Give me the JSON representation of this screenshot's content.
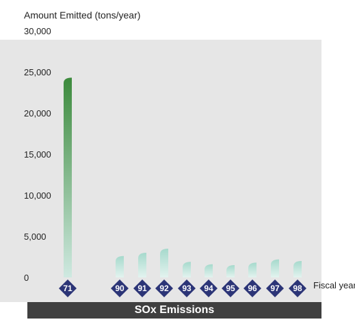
{
  "chart_data": {
    "type": "bar",
    "title": "SOx Emissions",
    "ylabel": "Amount Emitted (tons/year)",
    "xlabel": "Fiscal year",
    "categories": [
      "71",
      "90",
      "91",
      "92",
      "93",
      "94",
      "95",
      "96",
      "97",
      "98"
    ],
    "values": [
      24300,
      2600,
      3000,
      3500,
      1900,
      1600,
      1500,
      1800,
      2200,
      2000
    ],
    "ylim": [
      0,
      30000
    ],
    "yticks": [
      "0",
      "5,000",
      "10,000",
      "15,000",
      "20,000",
      "25,000",
      "30,000"
    ],
    "ytick_values": [
      0,
      5000,
      10000,
      15000,
      20000,
      25000,
      30000
    ],
    "highlight_category": "71",
    "colors": {
      "highlight_top": "#3c8a3c",
      "highlight_bottom": "#cfe9e1",
      "bar_top": "#a6d9cc",
      "bar_bottom": "#e3f3ef",
      "diamond": "#2c3577",
      "panel": "#e6e6e6",
      "caption_bar": "#3f3f3f"
    }
  }
}
